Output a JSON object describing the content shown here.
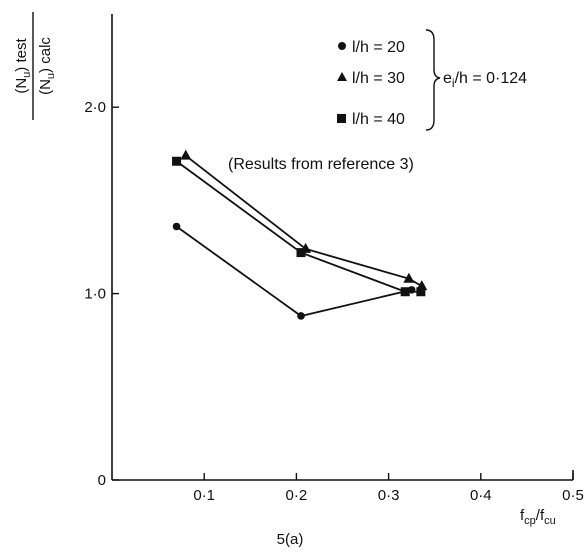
{
  "chart_data": {
    "type": "line",
    "xlabel_main": "f",
    "xlabel_sub1": "cp",
    "xlabel_sep": "/f",
    "xlabel_sub2": "cu",
    "ylabel_num_main": "(N",
    "ylabel_num_sub": "u",
    "ylabel_num_tail": ") test",
    "ylabel_den_main": "(N",
    "ylabel_den_sub": "u",
    "ylabel_den_tail": ") calc",
    "xlim": [
      0,
      0.5
    ],
    "ylim": [
      0,
      2.5
    ],
    "x_ticks": [
      {
        "value": 0.1,
        "label": "0·1"
      },
      {
        "value": 0.2,
        "label": "0·2"
      },
      {
        "value": 0.3,
        "label": "0·3"
      },
      {
        "value": 0.4,
        "label": "0·4"
      },
      {
        "value": 0.5,
        "label": "0·5"
      }
    ],
    "y_ticks": [
      {
        "value": 0,
        "label": "0"
      },
      {
        "value": 1.0,
        "label": "1·0"
      },
      {
        "value": 2.0,
        "label": "2·0"
      }
    ],
    "series": [
      {
        "name": "l/h = 20",
        "marker": "circle",
        "points": [
          [
            0.07,
            1.36
          ],
          [
            0.205,
            0.88
          ],
          [
            0.325,
            1.02
          ]
        ]
      },
      {
        "name": "l/h = 30",
        "marker": "triangle",
        "points": [
          [
            0.08,
            1.74
          ],
          [
            0.21,
            1.24
          ],
          [
            0.322,
            1.08
          ],
          [
            0.336,
            1.04
          ]
        ]
      },
      {
        "name": "l/h = 40",
        "marker": "square",
        "points": [
          [
            0.07,
            1.71
          ],
          [
            0.205,
            1.22
          ],
          [
            0.318,
            1.01
          ],
          [
            0.335,
            1.01
          ]
        ]
      }
    ],
    "legend_labels": [
      "l/h = 20",
      "l/h = 30",
      "l/h = 40"
    ],
    "legend_brace_label_main": "e",
    "legend_brace_label_sub": "i",
    "legend_brace_label_tail": "/h = 0·124",
    "annotation": "(Results from reference 3)",
    "caption": "5(a)",
    "colors": {
      "ink": "#111111",
      "background": "#ffffff"
    }
  }
}
